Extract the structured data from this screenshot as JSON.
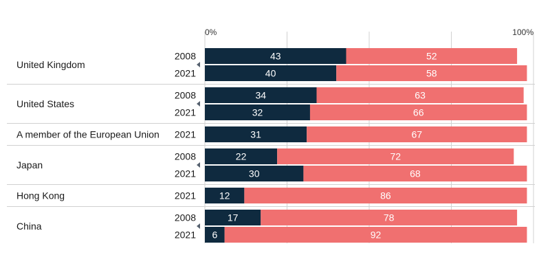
{
  "chart_data": {
    "type": "bar",
    "orientation": "horizontal",
    "stacked": true,
    "xlim": [
      0,
      100
    ],
    "tick_labels": {
      "start": "0%",
      "end": "100%"
    },
    "colors": {
      "series1": "#0f2a3f",
      "series2": "#f07070",
      "grid": "#d0d0d0",
      "marker": "#55606e"
    },
    "groups": [
      {
        "name": "United Kingdom",
        "rows": [
          {
            "year": "2008",
            "values": [
              43,
              52
            ]
          },
          {
            "year": "2021",
            "values": [
              40,
              58
            ]
          }
        ]
      },
      {
        "name": "United States",
        "rows": [
          {
            "year": "2008",
            "values": [
              34,
              63
            ]
          },
          {
            "year": "2021",
            "values": [
              32,
              66
            ]
          }
        ]
      },
      {
        "name": "A member of the European Union",
        "rows": [
          {
            "year": "2021",
            "values": [
              31,
              67
            ]
          }
        ]
      },
      {
        "name": "Japan",
        "rows": [
          {
            "year": "2008",
            "values": [
              22,
              72
            ]
          },
          {
            "year": "2021",
            "values": [
              30,
              68
            ]
          }
        ]
      },
      {
        "name": "Hong Kong",
        "rows": [
          {
            "year": "2021",
            "values": [
              12,
              86
            ]
          }
        ]
      },
      {
        "name": "China",
        "rows": [
          {
            "year": "2008",
            "values": [
              17,
              78
            ]
          },
          {
            "year": "2021",
            "values": [
              6,
              92
            ]
          }
        ]
      }
    ]
  }
}
